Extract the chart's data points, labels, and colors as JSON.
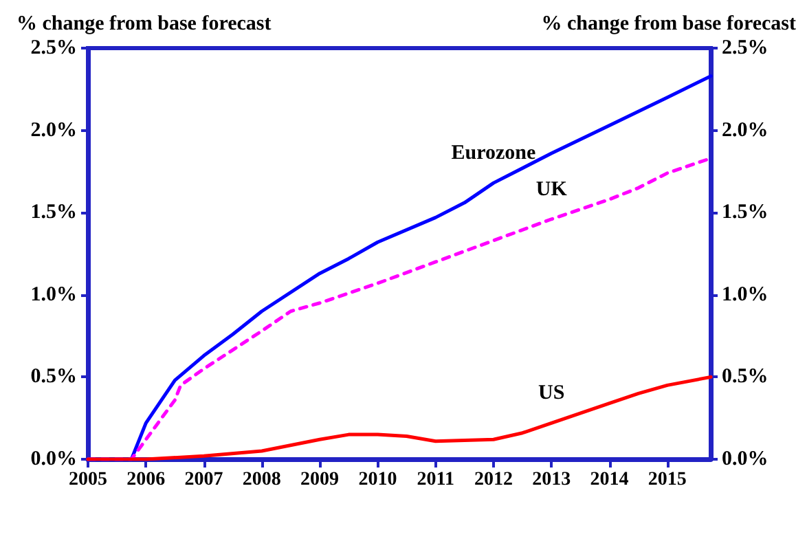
{
  "chart_data": {
    "type": "line",
    "ylabel": "% change from base forecast",
    "y2label": "% change from base forecast",
    "xlim": [
      2005,
      2015.75
    ],
    "xticks": [
      2005,
      2006,
      2007,
      2008,
      2009,
      2010,
      2011,
      2012,
      2013,
      2014,
      2015
    ],
    "ylim": [
      0,
      2.5
    ],
    "yticks": [
      {
        "value": 0,
        "label": "0.0%"
      },
      {
        "value": 0.5,
        "label": "0.5%"
      },
      {
        "value": 1,
        "label": "1.0%"
      },
      {
        "value": 1.5,
        "label": "1.5%"
      },
      {
        "value": 2,
        "label": "2.0%"
      },
      {
        "value": 2.5,
        "label": "2.5%"
      }
    ],
    "y2lim": [
      0,
      2.5
    ],
    "y2ticks": [
      {
        "value": 0,
        "label": "0.0%"
      },
      {
        "value": 0.5,
        "label": "0.5%"
      },
      {
        "value": 1,
        "label": "1.0%"
      },
      {
        "value": 1.5,
        "label": "1.5%"
      },
      {
        "value": 2,
        "label": "2.0%"
      },
      {
        "value": 2.5,
        "label": "2.5%"
      }
    ],
    "grid": false,
    "legend": false,
    "marker": "none",
    "series": [
      {
        "name": "Eurozone",
        "color": "#0000ff",
        "line_style": "solid",
        "x": [
          2005,
          2005.75,
          2006,
          2006.5,
          2007,
          2007.5,
          2008,
          2009,
          2009.5,
          2010,
          2011,
          2011.5,
          2012,
          2013,
          2014,
          2015,
          2015.75
        ],
        "values": [
          0,
          0,
          0.22,
          0.48,
          0.63,
          0.76,
          0.9,
          1.13,
          1.22,
          1.32,
          1.47,
          1.56,
          1.68,
          1.86,
          2.03,
          2.2,
          2.33
        ]
      },
      {
        "name": "UK",
        "color": "#ff00ff",
        "line_style": "dashed",
        "x": [
          2005,
          2005.75,
          2006,
          2006.5,
          2006.6,
          2007,
          2008,
          2008.5,
          2009,
          2010,
          2011,
          2012,
          2013,
          2014,
          2014.5,
          2015,
          2015.75
        ],
        "values": [
          0,
          0,
          0.12,
          0.36,
          0.45,
          0.55,
          0.78,
          0.9,
          0.95,
          1.07,
          1.2,
          1.33,
          1.46,
          1.58,
          1.65,
          1.74,
          1.83
        ]
      },
      {
        "name": "US",
        "color": "#ff0000",
        "line_style": "solid",
        "x": [
          2005,
          2006,
          2007,
          2008,
          2009,
          2009.5,
          2010,
          2010.5,
          2011,
          2012,
          2012.5,
          2013,
          2014,
          2014.5,
          2015,
          2015.75
        ],
        "values": [
          0,
          0,
          0.02,
          0.05,
          0.12,
          0.15,
          0.15,
          0.14,
          0.11,
          0.12,
          0.16,
          0.22,
          0.34,
          0.4,
          0.45,
          0.5
        ]
      }
    ]
  }
}
